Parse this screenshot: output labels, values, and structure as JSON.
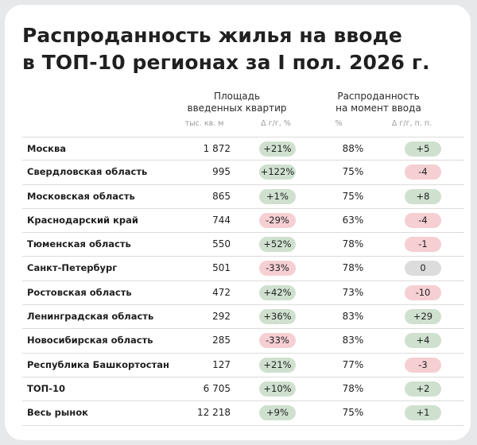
{
  "chart_data": {
    "type": "table",
    "title_lines": [
      "Распроданность жилья на вводе",
      "в ТОП-10 регионах  за I пол. 2026 г."
    ],
    "groups": [
      {
        "label_lines": [
          "Площадь",
          "введенных квартир"
        ],
        "columns": [
          "тыс. кв. м",
          "Δ г/г, %"
        ]
      },
      {
        "label_lines": [
          "Распроданность",
          "на момент ввода"
        ],
        "columns": [
          "%",
          "Δ г/г, п. п."
        ]
      }
    ],
    "rows": [
      {
        "region": "Москва",
        "area": "1 872",
        "area_change": "+21%",
        "area_change_value": 21,
        "sold": "88%",
        "sold_change": "+5",
        "sold_change_value": 5
      },
      {
        "region": "Свердловская область",
        "area": "995",
        "area_change": "+122%",
        "area_change_value": 122,
        "sold": "75%",
        "sold_change": "-4",
        "sold_change_value": -4
      },
      {
        "region": "Московская область",
        "area": "865",
        "area_change": "+1%",
        "area_change_value": 1,
        "sold": "75%",
        "sold_change": "+8",
        "sold_change_value": 8
      },
      {
        "region": "Краснодарский край",
        "area": "744",
        "area_change": "-29%",
        "area_change_value": -29,
        "sold": "63%",
        "sold_change": "-4",
        "sold_change_value": -4
      },
      {
        "region": "Тюменская область",
        "area": "550",
        "area_change": "+52%",
        "area_change_value": 52,
        "sold": "78%",
        "sold_change": "-1",
        "sold_change_value": -1
      },
      {
        "region": "Санкт-Петербург",
        "area": "501",
        "area_change": "-33%",
        "area_change_value": -33,
        "sold": "78%",
        "sold_change": "0",
        "sold_change_value": 0
      },
      {
        "region": "Ростовская область",
        "area": "472",
        "area_change": "+42%",
        "area_change_value": 42,
        "sold": "73%",
        "sold_change": "-10",
        "sold_change_value": -10
      },
      {
        "region": "Ленинградская область",
        "area": "292",
        "area_change": "+36%",
        "area_change_value": 36,
        "sold": "83%",
        "sold_change": "+29",
        "sold_change_value": 29
      },
      {
        "region": "Новосибирская область",
        "area": "285",
        "area_change": "-33%",
        "area_change_value": -33,
        "sold": "83%",
        "sold_change": "+4",
        "sold_change_value": 4
      },
      {
        "region": "Республика Башкортостан",
        "area": "127",
        "area_change": "+21%",
        "area_change_value": 21,
        "sold": "77%",
        "sold_change": "-3",
        "sold_change_value": -3
      },
      {
        "region": "ТОП-10",
        "area": "6 705",
        "area_change": "+10%",
        "area_change_value": 10,
        "sold": "78%",
        "sold_change": "+2",
        "sold_change_value": 2
      },
      {
        "region": "Весь рынок",
        "area": "12 218",
        "area_change": "+9%",
        "area_change_value": 9,
        "sold": "75%",
        "sold_change": "+1",
        "sold_change_value": 1
      }
    ]
  },
  "colors": {
    "positive": "#cfe0cf",
    "negative": "#f5cfd2",
    "neutral": "#dcdcdc",
    "card": "#ffffff",
    "background": "#e7e8ea"
  }
}
